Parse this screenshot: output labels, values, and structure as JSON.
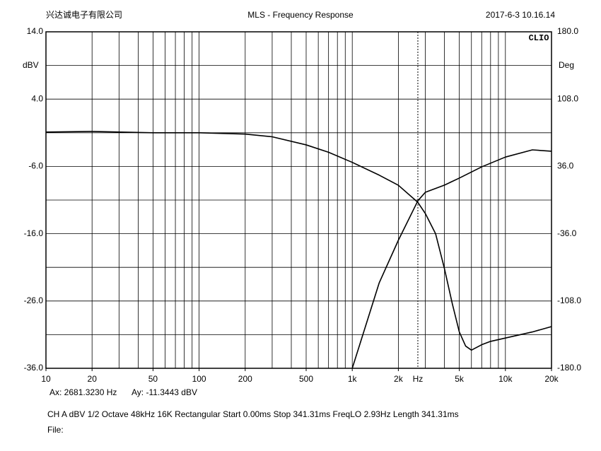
{
  "chart_data": {
    "type": "line",
    "title": "MLS - Frequency Response",
    "header_left": "兴达诚电子有限公司",
    "header_right": "2017-6-3 10.16.14",
    "watermark": "CLIO",
    "xlabel": "Hz",
    "ylabel": "dBV",
    "y2label": "Deg",
    "log_x": true,
    "grid": true,
    "xlim": [
      10,
      20000
    ],
    "xticks": [
      10,
      20,
      50,
      100,
      200,
      500,
      {
        "value": 1000,
        "label": "1k"
      },
      {
        "value": 2000,
        "label": "2k"
      },
      {
        "value": 5000,
        "label": "5k"
      },
      {
        "value": 10000,
        "label": "10k"
      },
      {
        "value": 20000,
        "label": "20k"
      }
    ],
    "xgrid": [
      10,
      20,
      30,
      40,
      50,
      60,
      70,
      80,
      90,
      100,
      200,
      300,
      400,
      500,
      600,
      700,
      800,
      900,
      1000,
      2000,
      3000,
      4000,
      5000,
      6000,
      7000,
      8000,
      9000,
      10000,
      20000
    ],
    "ylim": [
      -36,
      14
    ],
    "yticks": [
      {
        "value": 14,
        "label": "14.0"
      },
      {
        "value": 4,
        "label": "4.0"
      },
      {
        "value": -6,
        "label": "-6.0"
      },
      {
        "value": -16,
        "label": "-16.0"
      },
      {
        "value": -26,
        "label": "-26.0"
      },
      {
        "value": -36,
        "label": "-36.0"
      }
    ],
    "ygrid": [
      14,
      9,
      4,
      -1,
      -6,
      -11,
      -16,
      -21,
      -26,
      -31,
      -36
    ],
    "y2lim": [
      -180,
      180
    ],
    "y2ticks": [
      {
        "value": 180,
        "label": "180.0"
      },
      {
        "value": 108,
        "label": "108.0"
      },
      {
        "value": 36,
        "label": "36.0"
      },
      {
        "value": -36,
        "label": "-36.0"
      },
      {
        "value": -108,
        "label": "-108.0"
      },
      {
        "value": -180,
        "label": "-180.0"
      }
    ],
    "series": [
      {
        "color": "#000000",
        "axis": "y",
        "x": [
          10,
          20,
          50,
          100,
          200,
          300,
          500,
          700,
          1000,
          1500,
          2000,
          2681.323,
          3000,
          3500,
          4000,
          4500,
          5000,
          5500,
          6000,
          7000,
          8000,
          10000,
          15000,
          20000
        ],
        "values": [
          -0.9,
          -0.8,
          -1.0,
          -1.0,
          -1.2,
          -1.6,
          -2.8,
          -3.9,
          -5.4,
          -7.3,
          -8.8,
          -11.3443,
          -13.0,
          -16.0,
          -21.2,
          -26.4,
          -30.6,
          -32.7,
          -33.3,
          -32.5,
          -32.0,
          -31.5,
          -30.6,
          -29.8
        ]
      },
      {
        "color": "#000000",
        "axis": "y2",
        "x": [
          1000,
          1500,
          2000,
          2681.323,
          3000,
          4000,
          5000,
          7000,
          10000,
          15000,
          20000
        ],
        "values": [
          -180,
          -88.5,
          -43,
          -0.8,
          8.3,
          16,
          23.5,
          35.5,
          46,
          53.7,
          52.2
        ]
      }
    ],
    "cursor": {
      "x": {
        "value": 2681.323,
        "label": "Ax: 2681.3230 Hz"
      },
      "y": {
        "value": -11.3443,
        "label": "Ay: -11.3443 dBV"
      }
    },
    "footer": "CH A   dBV   1/2 Octave   48kHz   16K   Rectangular   Start 0.00ms   Stop 341.31ms   FreqLO 2.93Hz   Length 341.31ms",
    "file_label": "File:"
  }
}
